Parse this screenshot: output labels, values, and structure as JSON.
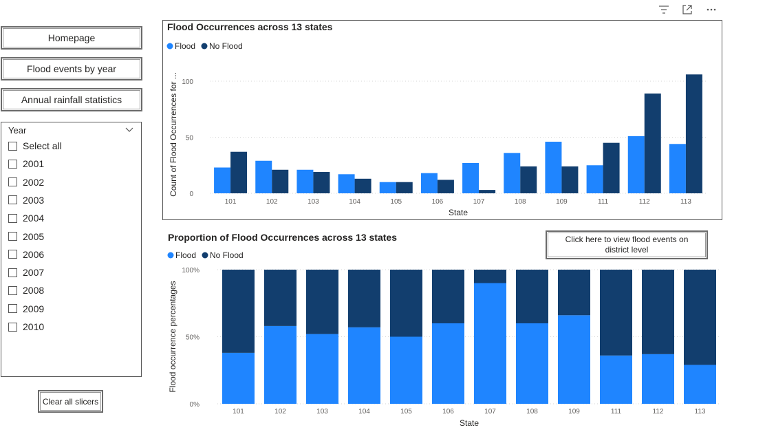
{
  "nav": {
    "homepage": "Homepage",
    "flood_by_year": "Flood events by year",
    "rainfall": "Annual rainfall statistics"
  },
  "slicer": {
    "header": "Year",
    "items": [
      "Select all",
      "2001",
      "2002",
      "2003",
      "2004",
      "2005",
      "2006",
      "2007",
      "2008",
      "2009",
      "2010"
    ]
  },
  "clear_button": "Clear all slicers",
  "district_button": "Click here to view flood events on district level",
  "icons": [
    "filter-icon",
    "focus-mode-icon",
    "more-options-icon"
  ],
  "colors": {
    "flood": "#1f85ff",
    "no_flood": "#123e6e"
  },
  "chart_data": [
    {
      "type": "bar",
      "title": "Flood Occurrences across 13 states",
      "xlabel": "State",
      "ylabel": "Count of Flood Occurrences for ...",
      "categories": [
        "101",
        "102",
        "103",
        "104",
        "105",
        "106",
        "107",
        "108",
        "109",
        "111",
        "112",
        "113"
      ],
      "series": [
        {
          "name": "Flood",
          "values": [
            23,
            29,
            21,
            17,
            10,
            18,
            27,
            36,
            46,
            25,
            51,
            44
          ]
        },
        {
          "name": "No Flood",
          "values": [
            37,
            21,
            19,
            13,
            10,
            12,
            3,
            24,
            24,
            45,
            89,
            106
          ]
        }
      ],
      "ylim": [
        0,
        110
      ],
      "yticks": [
        "0",
        "50",
        "100"
      ],
      "legend": "top-left"
    },
    {
      "type": "bar",
      "stacked": "percent",
      "title": "Proportion of Flood Occurrences across 13 states",
      "xlabel": "State",
      "ylabel": "Flood occurrence percentages",
      "categories": [
        "101",
        "102",
        "103",
        "104",
        "105",
        "106",
        "107",
        "108",
        "109",
        "111",
        "112",
        "113"
      ],
      "series": [
        {
          "name": "Flood",
          "values": [
            38,
            58,
            52,
            57,
            50,
            60,
            90,
            60,
            66,
            36,
            37,
            29
          ]
        },
        {
          "name": "No Flood",
          "values": [
            62,
            42,
            48,
            43,
            50,
            40,
            10,
            40,
            34,
            64,
            63,
            71
          ]
        }
      ],
      "ylim": [
        0,
        100
      ],
      "yticks": [
        "0%",
        "50%",
        "100%"
      ],
      "legend": "top-left"
    }
  ]
}
